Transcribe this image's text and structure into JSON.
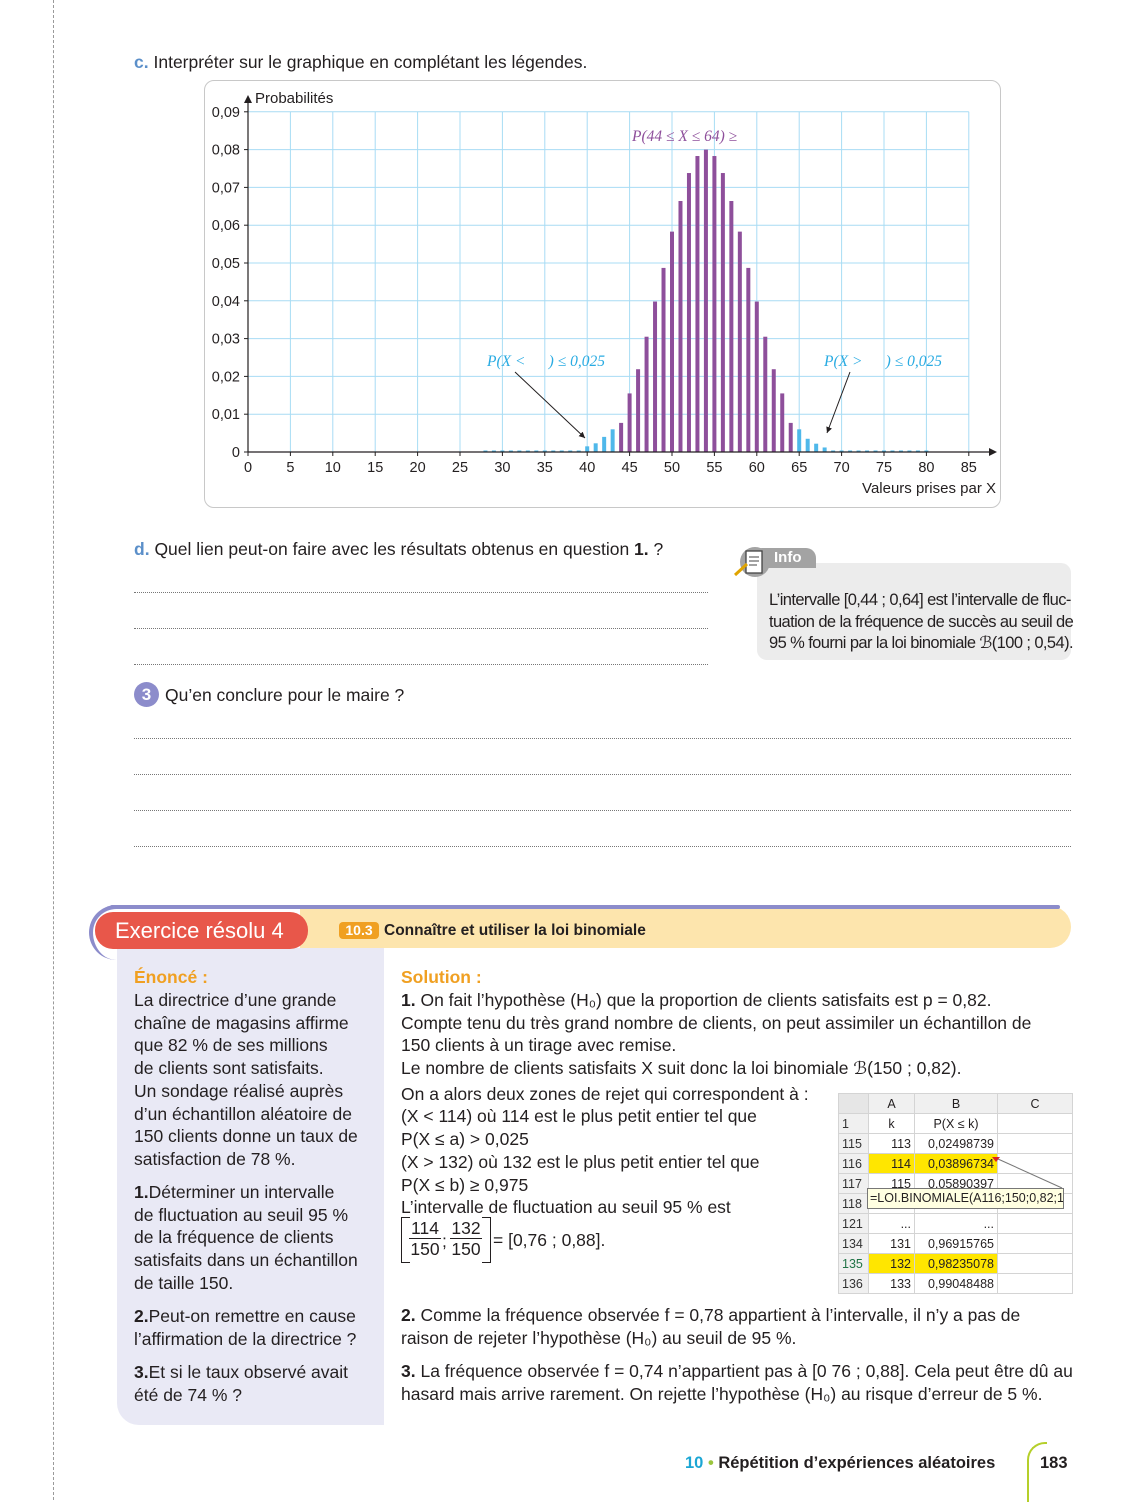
{
  "question_c": {
    "label": "c.",
    "text": "Interpréter sur le graphique en complétant les légendes."
  },
  "chart_data": {
    "type": "bar",
    "ylabel": "Probabilités",
    "xlabel": "Valeurs prises par X",
    "xlim": [
      0,
      88
    ],
    "ylim": [
      0,
      0.09
    ],
    "grid": true,
    "x_ticks": [
      "0",
      "5",
      "10",
      "15",
      "20",
      "25",
      "30",
      "35",
      "40",
      "45",
      "50",
      "55",
      "60",
      "65",
      "70",
      "75",
      "80",
      "85"
    ],
    "y_ticks": [
      "0",
      "0,01",
      "0,02",
      "0,03",
      "0,04",
      "0,05",
      "0,06",
      "0,07",
      "0,08",
      "0,09"
    ],
    "x": [
      28,
      29,
      30,
      31,
      32,
      33,
      34,
      35,
      36,
      37,
      38,
      39,
      40,
      41,
      42,
      43,
      44,
      45,
      46,
      47,
      48,
      49,
      50,
      51,
      52,
      53,
      54,
      55,
      56,
      57,
      58,
      59,
      60,
      61,
      62,
      63,
      64,
      65,
      66,
      67,
      68,
      69,
      70,
      71,
      72,
      73,
      74,
      75,
      76,
      77,
      78,
      79,
      80
    ],
    "values": [
      0.0001,
      0.0001,
      0.0001,
      0.0001,
      0.0001,
      0.0001,
      0.0001,
      0.0001,
      0.0001,
      0.0001,
      0.0002,
      0.0004,
      0.0015,
      0.0023,
      0.004,
      0.006,
      0.0077,
      0.0155,
      0.0219,
      0.0305,
      0.0398,
      0.0487,
      0.0583,
      0.0664,
      0.0738,
      0.0783,
      0.08,
      0.0783,
      0.0738,
      0.0664,
      0.0583,
      0.0487,
      0.0398,
      0.0305,
      0.0219,
      0.0155,
      0.0077,
      0.006,
      0.0035,
      0.0022,
      0.0012,
      0.0004,
      0.0002,
      0.0001,
      0.0001,
      0.0001,
      0.0001,
      0.0001,
      0.0001,
      0.0001,
      0.0001,
      0.0001,
      0.0001
    ],
    "highlight_range": [
      44,
      64
    ],
    "colors": {
      "inside": "#8e4f9b",
      "outside": "#4fb8ea",
      "grid": "#a8dcf4"
    },
    "annotations": {
      "center": "P(44 ≤ X ≤ 64) ≥",
      "left": "P(X <      ) ≤ 0,025",
      "right": "P(X >      ) ≤ 0,025"
    }
  },
  "question_d": {
    "label": "d.",
    "text": "Quel lien peut-on faire avec les résultats obtenus en question ",
    "ref": "1.",
    "end": " ?"
  },
  "info": {
    "tab": "Info",
    "icon": "scroll-pencil-icon",
    "lines": [
      "L’intervalle [0,44 ; 0,64] est l’intervalle de fluc-",
      "tuation de la fréquence de succès au seuil de",
      "95 % fourni par la loi binomiale ℬ(100 ; 0,54)."
    ]
  },
  "question_3": {
    "number": "3",
    "text": "Qu’en conclure pour le maire ?"
  },
  "exercise": {
    "title": "Exercice résolu 4",
    "badge": "10.3",
    "subtitle": "Connaître et utiliser la loi binomiale",
    "enonce_title": "Énoncé :",
    "enonce_lines": [
      "La directrice d’une grande",
      "chaîne de magasins affirme",
      "que 82 % de ses millions",
      "de clients sont satisfaits.",
      "Un sondage réalisé auprès",
      "d’un échantillon aléatoire de",
      "150 clients donne un taux de",
      "satisfaction de 78 %."
    ],
    "q1_num": "1.",
    "q1_lines": [
      "Déterminer un intervalle",
      "de fluctuation au seuil 95 %",
      "de la fréquence de clients",
      "satisfaits dans un échantillon",
      "de taille 150."
    ],
    "q2_num": "2.",
    "q2_lines": [
      "Peut-on remettre en cause",
      "l’affirmation de la directrice ?"
    ],
    "q3_num": "3.",
    "q3_lines": [
      "Et si le taux observé avait",
      "été de 74 % ?"
    ],
    "solution_title": "Solution :",
    "s1_num": "1.",
    "s1_lines": [
      " On fait l’hypothèse (H₀) que la proportion de clients satisfaits est p = 0,82.",
      "Compte tenu du très grand nombre de clients, on peut assimiler un échantillon de",
      "150 clients à un tirage avec remise.",
      "Le nombre de clients satisfaits X suit donc la loi binomiale ℬ(150 ; 0,82).",
      "On a alors deux zones de rejet qui correspondent à :",
      "(X < 114) où 114 est le plus petit entier tel que",
      "P(X ≤ a) > 0,025",
      "(X > 132) où 132 est le plus petit entier tel que",
      "P(X ≤ b) ≥ 0,975",
      "L’intervalle de fluctuation au seuil 95 % est"
    ],
    "interval": {
      "n1": "114",
      "d1": "150",
      "sep": ";",
      "n2": "132",
      "d2": "150",
      "result": "= [0,76 ; 0,88]."
    },
    "s2_num": "2.",
    "s2_lines": [
      " Comme la fréquence observée f = 0,78 appartient à l’intervalle, il n’y a pas de",
      "raison de rejeter l’hypothèse (H₀) au seuil de 95 %."
    ],
    "s3_num": "3.",
    "s3_lines": [
      " La fréquence observée f = 0,74 n’appartient pas à [0 76 ; 0,88]. Cela peut être dû au",
      "hasard mais arrive rarement. On rejette l’hypothèse (H₀) au risque d’erreur de 5 %."
    ]
  },
  "spreadsheet": {
    "columns": [
      "A",
      "B",
      "C"
    ],
    "rows": [
      {
        "row": "1",
        "a": "k",
        "b": "P(X ≤ k)",
        "hl": false
      },
      {
        "row": "115",
        "a": "113",
        "b": "0,02498739",
        "hl": false
      },
      {
        "row": "116",
        "a": "114",
        "b": "0,03896734",
        "hl": true
      },
      {
        "row": "117",
        "a": "115",
        "b": "0,05890397",
        "hl": false
      },
      {
        "row": "118",
        "a": "",
        "b": "",
        "hl": false
      },
      {
        "row": "121",
        "a": "...",
        "b": "...",
        "hl": false
      },
      {
        "row": "134",
        "a": "131",
        "b": "0,96915765",
        "hl": false
      },
      {
        "row": "135",
        "a": "132",
        "b": "0,98235078",
        "hl": true
      },
      {
        "row": "136",
        "a": "133",
        "b": "0,99048488",
        "hl": false
      }
    ],
    "tooltip": "=LOI.BINOMIALE(A116;150;0,82;1",
    "highlight_color": "#ffe600"
  },
  "footer": {
    "chapter": "10",
    "sep": "•",
    "title": "Répétition d’expériences aléatoires",
    "page": "183"
  }
}
